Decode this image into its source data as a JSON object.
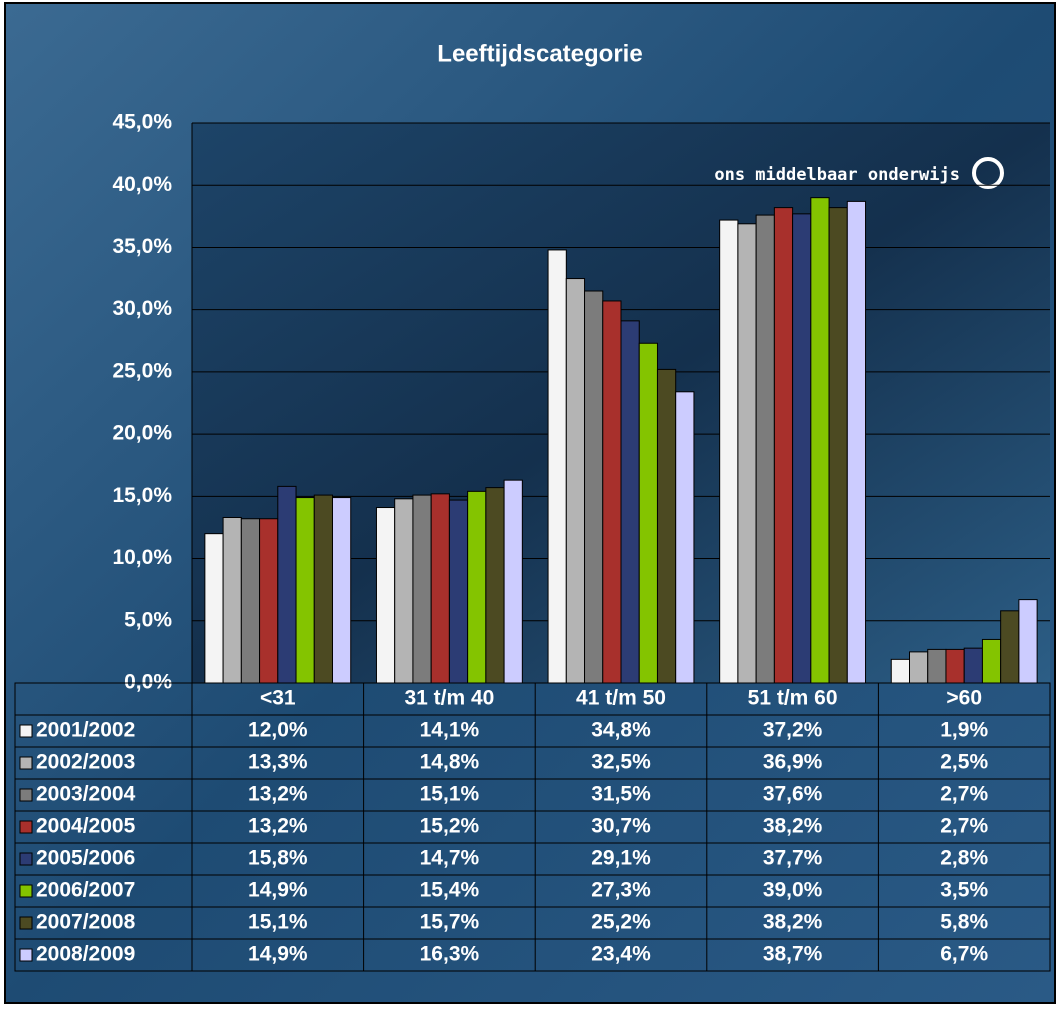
{
  "chart_data": {
    "type": "bar",
    "title": "Leeftijdscategorie",
    "annotation": "ons middelbaar onderwijs",
    "categories": [
      "<31",
      "31 t/m 40",
      "41 t/m 50",
      "51 t/m 60",
      ">60"
    ],
    "ylim": [
      0,
      45
    ],
    "yticks": [
      {
        "value": 0,
        "label": "0,0%"
      },
      {
        "value": 5,
        "label": "5,0%"
      },
      {
        "value": 10,
        "label": "10,0%"
      },
      {
        "value": 15,
        "label": "15,0%"
      },
      {
        "value": 20,
        "label": "20,0%"
      },
      {
        "value": 25,
        "label": "25,0%"
      },
      {
        "value": 30,
        "label": "30,0%"
      },
      {
        "value": 35,
        "label": "35,0%"
      },
      {
        "value": 40,
        "label": "40,0%"
      },
      {
        "value": 45,
        "label": "45,0%"
      }
    ],
    "grid": true,
    "series": [
      {
        "name": "2001/2002",
        "color": "#f4f4f4",
        "values": [
          12.0,
          14.1,
          34.8,
          37.2,
          1.9
        ],
        "value_labels": [
          "12,0%",
          "14,1%",
          "34,8%",
          "37,2%",
          "1,9%"
        ]
      },
      {
        "name": "2002/2003",
        "color": "#b4b4b4",
        "values": [
          13.3,
          14.8,
          32.5,
          36.9,
          2.5
        ],
        "value_labels": [
          "13,3%",
          "14,8%",
          "32,5%",
          "36,9%",
          "2,5%"
        ]
      },
      {
        "name": "2003/2004",
        "color": "#7c7c7c",
        "values": [
          13.2,
          15.1,
          31.5,
          37.6,
          2.7
        ],
        "value_labels": [
          "13,2%",
          "15,1%",
          "31,5%",
          "37,6%",
          "2,7%"
        ]
      },
      {
        "name": "2004/2005",
        "color": "#a8302c",
        "values": [
          13.2,
          15.2,
          30.7,
          38.2,
          2.7
        ],
        "value_labels": [
          "13,2%",
          "15,2%",
          "30,7%",
          "38,2%",
          "2,7%"
        ]
      },
      {
        "name": "2005/2006",
        "color": "#2c3c74",
        "values": [
          15.8,
          14.7,
          29.1,
          37.7,
          2.8
        ],
        "value_labels": [
          "15,8%",
          "14,7%",
          "29,1%",
          "37,7%",
          "2,8%"
        ]
      },
      {
        "name": "2006/2007",
        "color": "#84c400",
        "values": [
          14.9,
          15.4,
          27.3,
          39.0,
          3.5
        ],
        "value_labels": [
          "14,9%",
          "15,4%",
          "27,3%",
          "39,0%",
          "3,5%"
        ]
      },
      {
        "name": "2007/2008",
        "color": "#4c4a22",
        "values": [
          15.1,
          15.7,
          25.2,
          38.2,
          5.8
        ],
        "value_labels": [
          "15,1%",
          "15,7%",
          "25,2%",
          "38,2%",
          "5,8%"
        ]
      },
      {
        "name": "2008/2009",
        "color": "#ccccff",
        "values": [
          14.9,
          16.3,
          23.4,
          38.7,
          6.7
        ],
        "value_labels": [
          "14,9%",
          "16,3%",
          "23,4%",
          "38,7%",
          "6,7%"
        ]
      }
    ]
  }
}
